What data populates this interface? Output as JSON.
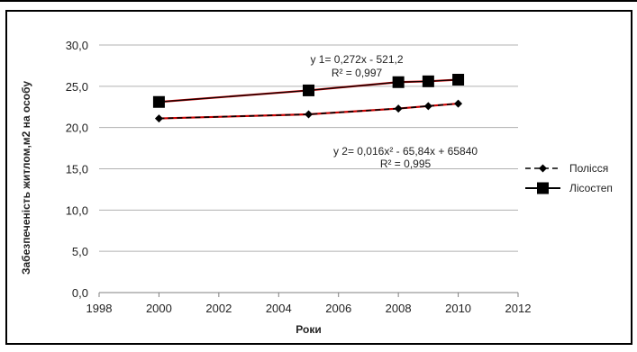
{
  "chart_data": {
    "type": "scatter",
    "title": "",
    "xlabel": "Роки",
    "ylabel": "Забезпеченість житлом,м2 на особу",
    "xlim": [
      1998,
      2012
    ],
    "ylim": [
      0,
      30
    ],
    "x_ticks": [
      "1998",
      "2000",
      "2002",
      "2004",
      "2006",
      "2008",
      "2010",
      "2012"
    ],
    "y_ticks": [
      "0,0",
      "5,0",
      "10,0",
      "15,0",
      "20,0",
      "25,0",
      "30,0"
    ],
    "grid": "horizontal",
    "legend": "right",
    "series": [
      {
        "name": "Полісся",
        "marker": "diamond",
        "line_style": "dashed",
        "color": "#000000",
        "x": [
          2000,
          2005,
          2008,
          2009,
          2010
        ],
        "y": [
          21.1,
          21.6,
          22.3,
          22.6,
          22.9
        ]
      },
      {
        "name": "Лісостеп",
        "marker": "square",
        "line_style": "solid",
        "color": "#000000",
        "x": [
          2000,
          2005,
          2008,
          2009,
          2010
        ],
        "y": [
          23.1,
          24.5,
          25.5,
          25.6,
          25.8
        ]
      }
    ],
    "trendline_color": "#cc0000",
    "annotations": [
      {
        "id": "eq1",
        "text": "y 1= 0,272x - 521,2"
      },
      {
        "id": "r1",
        "text": "R² = 0,997"
      },
      {
        "id": "eq2",
        "text": "y 2= 0,016x² - 65,84x + 65840"
      },
      {
        "id": "r2",
        "text": "R² = 0,995"
      }
    ]
  }
}
